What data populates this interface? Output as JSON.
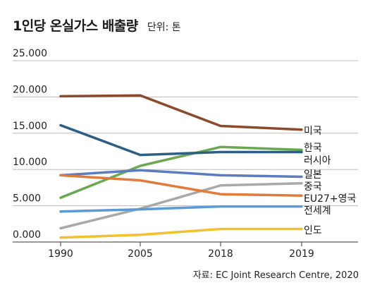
{
  "header": {
    "title": "1인당 온실가스 배출량",
    "unit": "단위: 톤"
  },
  "source": "자료: EC Joint Research Centre, 2020",
  "chart_data": {
    "type": "line",
    "title": "1인당 온실가스 배출량",
    "subtitle": "단위: 톤",
    "x": [
      "1990",
      "2005",
      "2018",
      "2019"
    ],
    "ylim": [
      0,
      25
    ],
    "yticks": [
      0,
      5,
      10,
      15,
      20,
      25
    ],
    "ytick_labels": [
      "0.000",
      "5.000",
      "10.000",
      "15.000",
      "20.000",
      "25.000"
    ],
    "grid": "horizontal",
    "series": [
      {
        "name": "미국",
        "color": "#8b4a2b",
        "values": [
          20.1,
          20.2,
          16.0,
          15.5
        ]
      },
      {
        "name": "한국",
        "color": "#6aa84f",
        "values": [
          6.1,
          10.5,
          13.1,
          12.7
        ]
      },
      {
        "name": "러시아",
        "color": "#2d5f86",
        "values": [
          16.1,
          12.0,
          12.4,
          12.4
        ]
      },
      {
        "name": "일본",
        "color": "#5b7cc0",
        "values": [
          9.2,
          9.9,
          9.2,
          9.0
        ]
      },
      {
        "name": "중국",
        "color": "#a9a9a9",
        "values": [
          1.9,
          4.6,
          7.8,
          8.1
        ]
      },
      {
        "name": "EU27+영국",
        "color": "#e07b39",
        "values": [
          9.2,
          8.5,
          6.6,
          6.4
        ]
      },
      {
        "name": "전세계",
        "color": "#5b9bd5",
        "values": [
          4.2,
          4.5,
          4.9,
          4.9
        ]
      },
      {
        "name": "인도",
        "color": "#f2c12e",
        "values": [
          0.6,
          1.0,
          1.8,
          1.8
        ]
      }
    ]
  }
}
